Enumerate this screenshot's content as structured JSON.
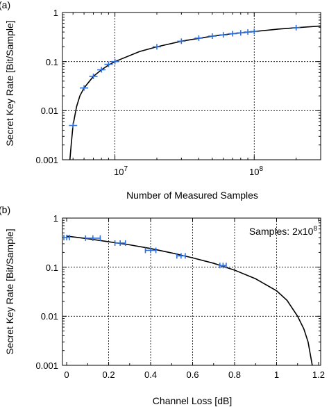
{
  "chart_data": [
    {
      "panel": "(a)",
      "type": "scatter",
      "xlabel": "Number of Measured Samples",
      "ylabel": "Secret Key Rate [Bit/Sample]",
      "xscale": "log",
      "yscale": "log",
      "xlim": [
        4200000,
        300000000
      ],
      "ylim": [
        0.001,
        1
      ],
      "grid": true,
      "ytick_labels": [
        "0.001",
        "0.01",
        "0.1",
        "1"
      ],
      "xtick_labels": [
        {
          "value": 10000000,
          "base": "10",
          "exp": "7"
        },
        {
          "value": 100000000,
          "base": "10",
          "exp": "8"
        }
      ],
      "series": [
        {
          "kind": "measured",
          "color": "#2f6fdc",
          "points": [
            {
              "x": 5000000,
              "y": 0.005
            },
            {
              "x": 6000000,
              "y": 0.029
            },
            {
              "x": 7000000,
              "y": 0.05
            },
            {
              "x": 8000000,
              "y": 0.068
            },
            {
              "x": 9000000,
              "y": 0.088
            },
            {
              "x": 10000000,
              "y": 0.1
            },
            {
              "x": 20000000,
              "y": 0.2
            },
            {
              "x": 30000000,
              "y": 0.26
            },
            {
              "x": 40000000,
              "y": 0.3
            },
            {
              "x": 50000000,
              "y": 0.33
            },
            {
              "x": 60000000,
              "y": 0.35
            },
            {
              "x": 70000000,
              "y": 0.37
            },
            {
              "x": 80000000,
              "y": 0.385
            },
            {
              "x": 90000000,
              "y": 0.4
            },
            {
              "x": 100000000,
              "y": 0.41
            },
            {
              "x": 200000000,
              "y": 0.49
            }
          ]
        },
        {
          "kind": "theory",
          "color": "#000000",
          "points": [
            {
              "x": 4750000,
              "y": 0.001
            },
            {
              "x": 4850000,
              "y": 0.002
            },
            {
              "x": 5000000,
              "y": 0.005
            },
            {
              "x": 5300000,
              "y": 0.012
            },
            {
              "x": 5600000,
              "y": 0.02
            },
            {
              "x": 6000000,
              "y": 0.029
            },
            {
              "x": 7000000,
              "y": 0.05
            },
            {
              "x": 8000000,
              "y": 0.068
            },
            {
              "x": 9000000,
              "y": 0.085
            },
            {
              "x": 10000000,
              "y": 0.1
            },
            {
              "x": 15000000,
              "y": 0.16
            },
            {
              "x": 20000000,
              "y": 0.2
            },
            {
              "x": 30000000,
              "y": 0.26
            },
            {
              "x": 50000000,
              "y": 0.33
            },
            {
              "x": 70000000,
              "y": 0.37
            },
            {
              "x": 100000000,
              "y": 0.41
            },
            {
              "x": 150000000,
              "y": 0.46
            },
            {
              "x": 200000000,
              "y": 0.49
            },
            {
              "x": 300000000,
              "y": 0.53
            }
          ]
        }
      ]
    },
    {
      "panel": "(b)",
      "type": "scatter",
      "xlabel": "Channel Loss [dB]",
      "ylabel": "Secret Key Rate [Bit/Sample]",
      "xscale": "linear",
      "yscale": "log",
      "xlim": [
        -0.02,
        1.21
      ],
      "ylim": [
        0.001,
        1
      ],
      "grid": true,
      "ytick_labels": [
        "0.001",
        "0.01",
        "0.1",
        "1"
      ],
      "xtick_labels": [
        "0",
        "0.2",
        "0.4",
        "0.6",
        "0.8",
        "1",
        "1.2"
      ],
      "xticks": [
        0,
        0.2,
        0.4,
        0.6,
        0.8,
        1,
        1.2
      ],
      "annotation": {
        "text": "Samples: 2x10",
        "sup": "8"
      },
      "series": [
        {
          "kind": "measured",
          "color": "#2f6fdc",
          "points": [
            {
              "x": 0.0,
              "y": 0.4,
              "xerr": 0.005
            },
            {
              "x": 0.125,
              "y": 0.39,
              "xerr": 0.035
            },
            {
              "x": 0.255,
              "y": 0.31,
              "xerr": 0.025
            },
            {
              "x": 0.4,
              "y": 0.22,
              "xerr": 0.025
            },
            {
              "x": 0.545,
              "y": 0.17,
              "xerr": 0.02
            },
            {
              "x": 0.745,
              "y": 0.108,
              "xerr": 0.015
            }
          ]
        },
        {
          "kind": "theory",
          "color": "#000000",
          "points": [
            {
              "x": 0.0,
              "y": 0.43
            },
            {
              "x": 0.1,
              "y": 0.38
            },
            {
              "x": 0.2,
              "y": 0.33
            },
            {
              "x": 0.3,
              "y": 0.285
            },
            {
              "x": 0.4,
              "y": 0.24
            },
            {
              "x": 0.5,
              "y": 0.195
            },
            {
              "x": 0.6,
              "y": 0.155
            },
            {
              "x": 0.7,
              "y": 0.12
            },
            {
              "x": 0.8,
              "y": 0.087
            },
            {
              "x": 0.9,
              "y": 0.058
            },
            {
              "x": 1.0,
              "y": 0.033
            },
            {
              "x": 1.05,
              "y": 0.021
            },
            {
              "x": 1.1,
              "y": 0.01
            },
            {
              "x": 1.13,
              "y": 0.0055
            },
            {
              "x": 1.15,
              "y": 0.003
            },
            {
              "x": 1.17,
              "y": 0.001
            }
          ]
        }
      ]
    }
  ]
}
